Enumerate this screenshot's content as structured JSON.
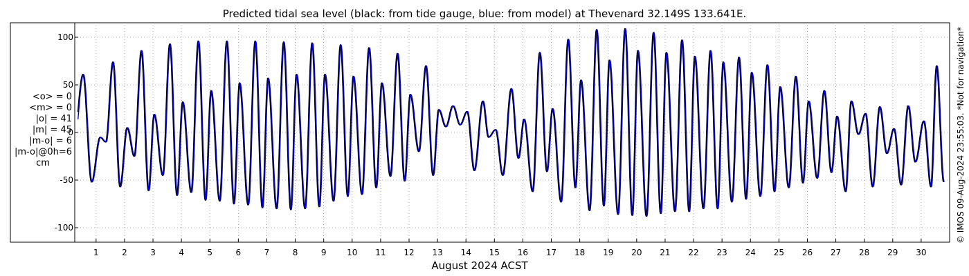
{
  "chart_data": {
    "type": "line",
    "title": "Predicted tidal sea level (black: from tide gauge, blue: from model) at Thevenard 32.149S 133.641E.",
    "xlabel": "August 2024 ACST",
    "ylabel": "",
    "xlim": [
      0.25,
      31.0
    ],
    "ylim": [
      -105,
      108
    ],
    "x_ticks": [
      1,
      2,
      3,
      4,
      5,
      6,
      7,
      8,
      9,
      10,
      11,
      12,
      13,
      14,
      15,
      16,
      17,
      18,
      19,
      20,
      21,
      22,
      23,
      24,
      25,
      26,
      27,
      28,
      29,
      30
    ],
    "x_tick_labels": [
      "1",
      "2",
      "3",
      "4",
      "5",
      "6",
      "7",
      "8",
      "9",
      "10",
      "11",
      "12",
      "13",
      "14",
      "15",
      "16",
      "17",
      "18",
      "19",
      "20",
      "21",
      "22",
      "23",
      "24",
      "25",
      "26",
      "27",
      "28",
      "29",
      "30"
    ],
    "y_ticks": [
      100,
      50,
      0,
      -50,
      -100
    ],
    "y_tick_labels": [
      "100",
      "50",
      "0",
      "-50",
      "-100"
    ],
    "grid": "dotted",
    "high_water": [
      [
        0.55,
        61
      ],
      [
        1.15,
        -5
      ],
      [
        1.6,
        74
      ],
      [
        2.1,
        5
      ],
      [
        2.6,
        86
      ],
      [
        3.05,
        19
      ],
      [
        3.6,
        93
      ],
      [
        4.05,
        32
      ],
      [
        4.6,
        96
      ],
      [
        5.05,
        44
      ],
      [
        5.6,
        96
      ],
      [
        6.05,
        52
      ],
      [
        6.6,
        96
      ],
      [
        7.05,
        57
      ],
      [
        7.6,
        95
      ],
      [
        8.05,
        61
      ],
      [
        8.6,
        94
      ],
      [
        9.05,
        61
      ],
      [
        9.6,
        92
      ],
      [
        10.05,
        59
      ],
      [
        10.6,
        89
      ],
      [
        11.05,
        52
      ],
      [
        11.6,
        83
      ],
      [
        12.05,
        40
      ],
      [
        12.6,
        70
      ],
      [
        13.05,
        24
      ],
      [
        13.55,
        28
      ],
      [
        14.05,
        22
      ],
      [
        14.6,
        33
      ],
      [
        15.05,
        3
      ],
      [
        15.6,
        46
      ],
      [
        16.05,
        14
      ],
      [
        16.6,
        84
      ],
      [
        17.05,
        25
      ],
      [
        17.6,
        98
      ],
      [
        18.05,
        55
      ],
      [
        18.6,
        108
      ],
      [
        19.05,
        76
      ],
      [
        19.6,
        109
      ],
      [
        20.05,
        86
      ],
      [
        20.6,
        105
      ],
      [
        21.05,
        84
      ],
      [
        21.6,
        97
      ],
      [
        22.05,
        80
      ],
      [
        22.6,
        86
      ],
      [
        23.05,
        74
      ],
      [
        23.6,
        79
      ],
      [
        24.05,
        63
      ],
      [
        24.6,
        71
      ],
      [
        25.05,
        48
      ],
      [
        25.6,
        59
      ],
      [
        26.05,
        33
      ],
      [
        26.6,
        44
      ],
      [
        27.05,
        17
      ],
      [
        27.55,
        33
      ],
      [
        28.05,
        20
      ],
      [
        28.55,
        27
      ],
      [
        29.05,
        4
      ],
      [
        29.55,
        28
      ],
      [
        30.1,
        12
      ],
      [
        30.55,
        70
      ]
    ],
    "low_water": [
      [
        0.2,
        -18
      ],
      [
        0.85,
        -52
      ],
      [
        1.35,
        -10
      ],
      [
        1.85,
        -57
      ],
      [
        2.35,
        -25
      ],
      [
        2.85,
        -61
      ],
      [
        3.35,
        -45
      ],
      [
        3.85,
        -66
      ],
      [
        4.35,
        -63
      ],
      [
        4.85,
        -71
      ],
      [
        5.35,
        -72
      ],
      [
        5.85,
        -75
      ],
      [
        6.35,
        -76
      ],
      [
        6.85,
        -79
      ],
      [
        7.35,
        -80
      ],
      [
        7.85,
        -81
      ],
      [
        8.35,
        -80
      ],
      [
        8.85,
        -78
      ],
      [
        9.35,
        -72
      ],
      [
        9.85,
        -67
      ],
      [
        10.35,
        -65
      ],
      [
        10.85,
        -58
      ],
      [
        11.35,
        -46
      ],
      [
        11.85,
        -51
      ],
      [
        12.35,
        -20
      ],
      [
        12.85,
        -45
      ],
      [
        13.3,
        6
      ],
      [
        13.8,
        8
      ],
      [
        14.3,
        -40
      ],
      [
        14.8,
        -5
      ],
      [
        15.3,
        -45
      ],
      [
        15.85,
        -27
      ],
      [
        16.35,
        -62
      ],
      [
        16.85,
        -41
      ],
      [
        17.35,
        -73
      ],
      [
        17.85,
        -58
      ],
      [
        18.35,
        -82
      ],
      [
        18.85,
        -77
      ],
      [
        19.35,
        -86
      ],
      [
        19.85,
        -87
      ],
      [
        20.35,
        -88
      ],
      [
        20.85,
        -85
      ],
      [
        21.35,
        -83
      ],
      [
        21.85,
        -83
      ],
      [
        22.35,
        -80
      ],
      [
        22.85,
        -80
      ],
      [
        23.35,
        -73
      ],
      [
        23.85,
        -70
      ],
      [
        24.35,
        -67
      ],
      [
        24.85,
        -62
      ],
      [
        25.35,
        -58
      ],
      [
        25.85,
        -53
      ],
      [
        26.35,
        -48
      ],
      [
        26.85,
        -42
      ],
      [
        27.35,
        -62
      ],
      [
        27.8,
        -2
      ],
      [
        28.3,
        -57
      ],
      [
        28.8,
        -22
      ],
      [
        29.3,
        -55
      ],
      [
        29.8,
        -31
      ],
      [
        30.35,
        -57
      ],
      [
        30.8,
        -52
      ]
    ],
    "series": [
      {
        "name": "from tide gauge",
        "color": "#000000"
      },
      {
        "name": "from model",
        "color": "#0000dd"
      }
    ]
  },
  "stats": {
    "mean_obs": "<o> = 0",
    "mean_model": "<m> = 0",
    "abs_obs": "|o| = 41",
    "abs_model": "|m| = 45",
    "abs_diff": "|m-o| = 6",
    "abs_diff_0h": "|m-o|@0h=6",
    "unit": "cm"
  },
  "footer_note": "© IMOS 09-Aug-2024 23:55:03. *Not for navigation*",
  "colors": {
    "gauge": "#000000",
    "model": "#0000dd",
    "grid": "#999999",
    "axis": "#000000"
  }
}
